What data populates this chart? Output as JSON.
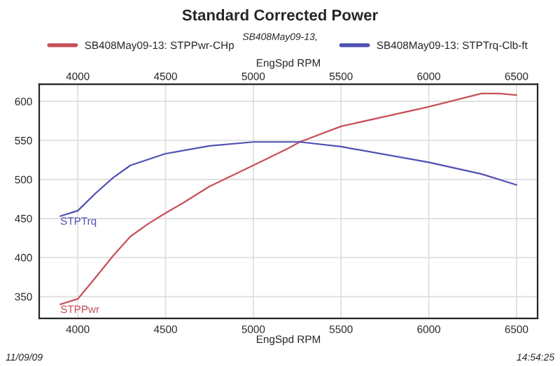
{
  "chart_data": {
    "type": "line",
    "title": "Standard Corrected Power",
    "subtitle": "SB408May09-13,",
    "xlabel": "EngSpd RPM",
    "series": [
      {
        "name": "SB408May09-13: STPPwr-CHp",
        "color": "#c8505a",
        "x": [
          3900,
          4000,
          4100,
          4200,
          4300,
          4400,
          4500,
          4600,
          4750,
          5000,
          5200,
          5265,
          5500,
          6000,
          6300,
          6400,
          6500
        ],
        "values": [
          340,
          347,
          374,
          402,
          427,
          443,
          457,
          470,
          491,
          518,
          540,
          548,
          568,
          593,
          610,
          610,
          608
        ]
      },
      {
        "name": "SB408May09-13: STPTrq-Clb-ft",
        "color": "#5050b4",
        "x": [
          3900,
          4000,
          4100,
          4200,
          4300,
          4500,
          4750,
          5000,
          5265,
          5500,
          6000,
          6300,
          6500
        ],
        "values": [
          453,
          460,
          482,
          502,
          518,
          533,
          543,
          548,
          548,
          542,
          522,
          507,
          493
        ]
      }
    ],
    "annotations": [
      {
        "text": "STPPwr",
        "x": 3900,
        "y": 340
      },
      {
        "text": "STPTrq",
        "x": 3900,
        "y": 453
      },
      "11/09/09",
      "14:54:25"
    ],
    "xlim": [
      3780,
      6620
    ],
    "xticks": [
      4000,
      4500,
      5000,
      5500,
      6000,
      6500
    ],
    "x2lim": [
      3780,
      6620
    ],
    "x2ticks": [
      4000,
      4500,
      5000,
      5500,
      6000,
      6500
    ],
    "ylim": [
      322,
      622
    ],
    "yticks": [
      350,
      400,
      450,
      500,
      550,
      600
    ],
    "grid": true,
    "legend": "top"
  }
}
